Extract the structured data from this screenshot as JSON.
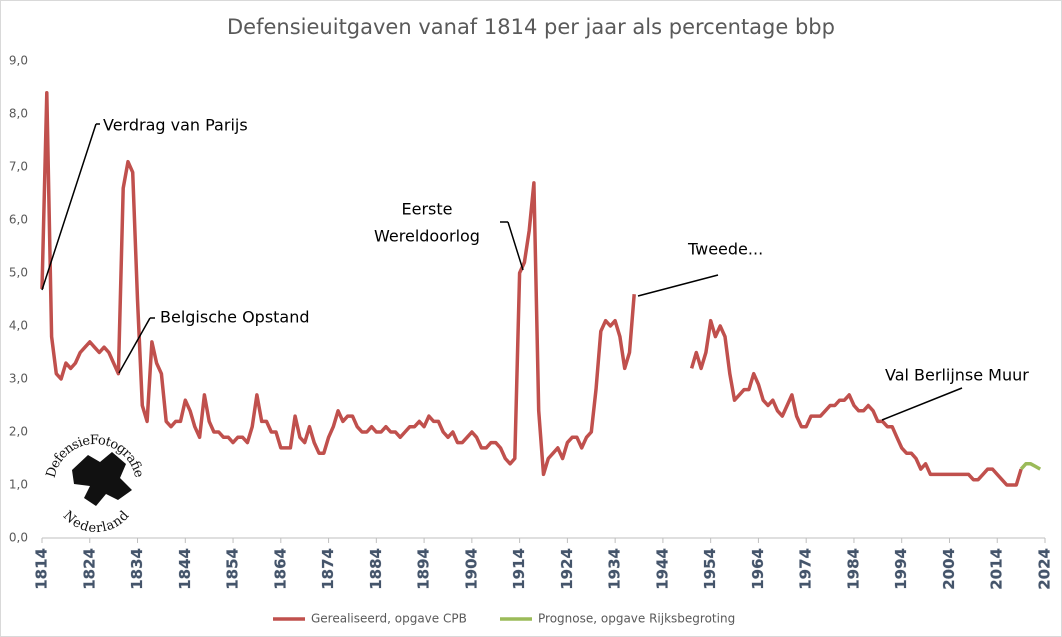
{
  "chart_data": {
    "type": "line",
    "title": "Defensieuitgaven vanaf 1814 per jaar als percentage bbp",
    "xlim": [
      1814,
      2024
    ],
    "xticks": [
      1814,
      1824,
      1834,
      1844,
      1854,
      1864,
      1874,
      1884,
      1894,
      1904,
      1914,
      1924,
      1934,
      1944,
      1954,
      1964,
      1974,
      1984,
      1994,
      2004,
      2014,
      2024
    ],
    "ylim": [
      0,
      9
    ],
    "yticks": [
      {
        "value": 0,
        "label": "0,0"
      },
      {
        "value": 1,
        "label": "1,0"
      },
      {
        "value": 2,
        "label": "2,0"
      },
      {
        "value": 3,
        "label": "3,0"
      },
      {
        "value": 4,
        "label": "4,0"
      },
      {
        "value": 5,
        "label": "5,0"
      },
      {
        "value": 6,
        "label": "6,0"
      },
      {
        "value": 7,
        "label": "7,0"
      },
      {
        "value": 8,
        "label": "8,0"
      },
      {
        "value": 9,
        "label": "9,0"
      }
    ],
    "grid": false,
    "legend": "bottom",
    "series": [
      {
        "name": "Gerealiseerd, opgave CPB",
        "color": "#c0504d",
        "x": [
          1814,
          1815,
          1816,
          1817,
          1818,
          1819,
          1820,
          1821,
          1822,
          1823,
          1824,
          1825,
          1826,
          1827,
          1828,
          1829,
          1830,
          1831,
          1832,
          1833,
          1834,
          1835,
          1836,
          1837,
          1838,
          1839,
          1840,
          1841,
          1842,
          1843,
          1844,
          1845,
          1846,
          1847,
          1848,
          1849,
          1850,
          1851,
          1852,
          1853,
          1854,
          1855,
          1856,
          1857,
          1858,
          1859,
          1860,
          1861,
          1862,
          1863,
          1864,
          1865,
          1866,
          1867,
          1868,
          1869,
          1870,
          1871,
          1872,
          1873,
          1874,
          1875,
          1876,
          1877,
          1878,
          1879,
          1880,
          1881,
          1882,
          1883,
          1884,
          1885,
          1886,
          1887,
          1888,
          1889,
          1890,
          1891,
          1892,
          1893,
          1894,
          1895,
          1896,
          1897,
          1898,
          1899,
          1900,
          1901,
          1902,
          1903,
          1904,
          1905,
          1906,
          1907,
          1908,
          1909,
          1910,
          1911,
          1912,
          1913,
          1914,
          1915,
          1916,
          1917,
          1918,
          1919,
          1920,
          1921,
          1922,
          1923,
          1924,
          1925,
          1926,
          1927,
          1928,
          1929,
          1930,
          1931,
          1932,
          1933,
          1934,
          1935,
          1936,
          1937,
          1938,
          1939,
          1940,
          1941,
          1942,
          1943,
          1944,
          1945,
          1946,
          1947,
          1948,
          1949,
          1950,
          1951,
          1952,
          1953,
          1954,
          1955,
          1956,
          1957,
          1958,
          1959,
          1960,
          1961,
          1962,
          1963,
          1964,
          1965,
          1966,
          1967,
          1968,
          1969,
          1970,
          1971,
          1972,
          1973,
          1974,
          1975,
          1976,
          1977,
          1978,
          1979,
          1980,
          1981,
          1982,
          1983,
          1984,
          1985,
          1986,
          1987,
          1988,
          1989,
          1990,
          1991,
          1992,
          1993,
          1994,
          1995,
          1996,
          1997,
          1998,
          1999,
          2000,
          2001,
          2002,
          2003,
          2004,
          2005,
          2006,
          2007,
          2008,
          2009,
          2010,
          2011,
          2012,
          2013,
          2014,
          2015,
          2016,
          2017,
          2018,
          2019
        ],
        "values": [
          4.7,
          8.4,
          3.8,
          3.1,
          3.0,
          3.3,
          3.2,
          3.3,
          3.5,
          3.6,
          3.7,
          3.6,
          3.5,
          3.6,
          3.5,
          3.3,
          3.1,
          6.6,
          7.1,
          6.9,
          4.5,
          2.5,
          2.2,
          3.7,
          3.3,
          3.1,
          2.2,
          2.1,
          2.2,
          2.2,
          2.6,
          2.4,
          2.1,
          1.9,
          2.7,
          2.2,
          2.0,
          2.0,
          1.9,
          1.9,
          1.8,
          1.9,
          1.9,
          1.8,
          2.1,
          2.7,
          2.2,
          2.2,
          2.0,
          2.0,
          1.7,
          1.7,
          1.7,
          2.3,
          1.9,
          1.8,
          2.1,
          1.8,
          1.6,
          1.6,
          1.9,
          2.1,
          2.4,
          2.2,
          2.3,
          2.3,
          2.1,
          2.0,
          2.0,
          2.1,
          2.0,
          2.0,
          2.1,
          2.0,
          2.0,
          1.9,
          2.0,
          2.1,
          2.1,
          2.2,
          2.1,
          2.3,
          2.2,
          2.2,
          2.0,
          1.9,
          2.0,
          1.8,
          1.8,
          1.9,
          2.0,
          1.9,
          1.7,
          1.7,
          1.8,
          1.8,
          1.7,
          1.5,
          1.4,
          1.5,
          5.0,
          5.2,
          5.8,
          6.7,
          2.4,
          1.2,
          1.5,
          1.6,
          1.7,
          1.5,
          1.8,
          1.9,
          1.9,
          1.7,
          1.9,
          2.0,
          2.8,
          3.9,
          4.1,
          4.0,
          4.1,
          3.8,
          3.2,
          3.5,
          4.6,
          null,
          null,
          null,
          null,
          null,
          null,
          null,
          null,
          null,
          null,
          null,
          3.2,
          3.5,
          3.2,
          3.5,
          4.1,
          3.8,
          4.0,
          3.8,
          3.1,
          2.6,
          2.7,
          2.8,
          2.8,
          3.1,
          2.9,
          2.6,
          2.5,
          2.6,
          2.4,
          2.3,
          2.5,
          2.7,
          2.3,
          2.1,
          2.1,
          2.3,
          2.3,
          2.3,
          2.4,
          2.5,
          2.5,
          2.6,
          2.6,
          2.7,
          2.5,
          2.4,
          2.4,
          2.5,
          2.4,
          2.2,
          2.2,
          2.1,
          2.1,
          1.9,
          1.7,
          1.6,
          1.6,
          1.5,
          1.3,
          1.4,
          1.2,
          1.2,
          1.2,
          1.2,
          1.2,
          1.2,
          1.2,
          1.2,
          1.2,
          1.1,
          1.1,
          1.2,
          1.3,
          1.3,
          1.2,
          1.1,
          1.0,
          1.0,
          1.0,
          1.3
        ]
      },
      {
        "name": "Prognose, opgave Rijksbegroting",
        "color": "#9bbb59",
        "x": [
          2019,
          2020,
          2021,
          2022,
          2023
        ],
        "values": [
          1.3,
          1.4,
          1.4,
          1.35,
          1.3
        ]
      }
    ],
    "annotations": [
      {
        "lines": [
          "Verdrag van Parijs"
        ]
      },
      {
        "lines": [
          "Belgische Opstand"
        ]
      },
      {
        "lines": [
          "Eerste",
          "Wereldoorlog"
        ]
      },
      {
        "lines": [
          "Tweede..."
        ]
      },
      {
        "lines": [
          "Val Berlijnse Muur"
        ]
      }
    ],
    "logo": {
      "top": "DefensieFotografie",
      "bottom": "Nederland"
    }
  }
}
